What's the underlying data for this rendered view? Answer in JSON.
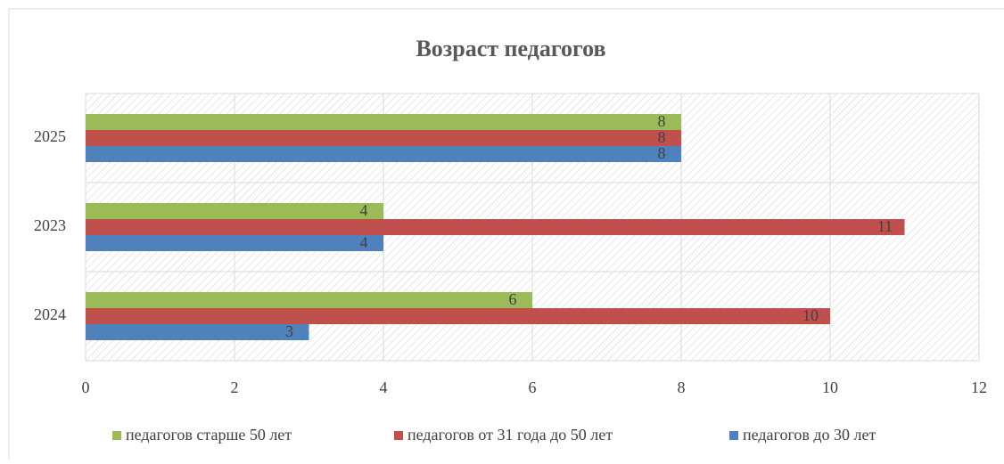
{
  "chart_data": {
    "type": "bar",
    "orientation": "horizontal",
    "title": "Возраст педагогов",
    "categories": [
      "2024",
      "2023",
      "2025"
    ],
    "series": [
      {
        "name": "педагогов до 30 лет",
        "color": "#4f81bd",
        "values": [
          3,
          4,
          8
        ]
      },
      {
        "name": "педагогов от 31 года до 50 лет",
        "color": "#c0504d",
        "values": [
          10,
          11,
          8
        ]
      },
      {
        "name": "педагогов старше 50 лет",
        "color": "#9bbb59",
        "values": [
          6,
          4,
          8
        ]
      }
    ],
    "xlim": [
      0,
      12
    ],
    "xticks": [
      0,
      2,
      4,
      6,
      8,
      10,
      12
    ],
    "grid": true,
    "legend": "bottom"
  }
}
